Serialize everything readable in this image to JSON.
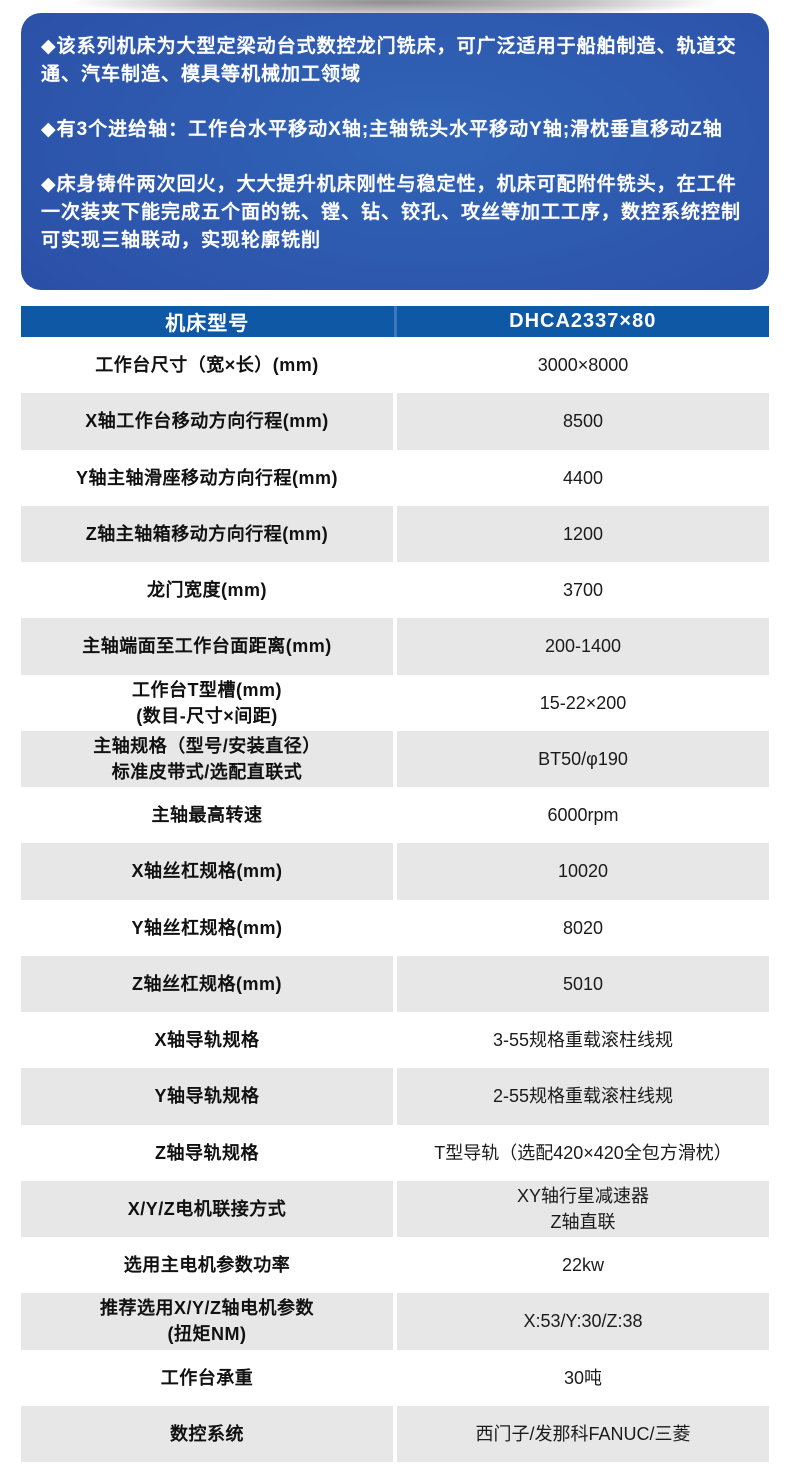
{
  "colors": {
    "panel_blue_light": "#3064b7",
    "panel_blue_dark": "#223e92",
    "table_header_blue": "#0f58a6",
    "table_header_divider": "#3a79b9",
    "row_gray": "#e7e7e7",
    "text_white": "#ffffff",
    "text_black": "#111111"
  },
  "intro": {
    "bullets": [
      "◆该系列机床为大型定梁动台式数控龙门铣床，可广泛适用于船舶制造、轨道交\n通、汽车制造、模具等机械加工领域",
      "◆有3个进给轴：工作台水平移动X轴;主轴铣头水平移动Y轴;滑枕垂直移动Z轴",
      "◆床身铸件两次回火，大大提升机床刚性与稳定性，机床可配附件铣头，在工件\n一次装夹下能完成五个面的铣、镗、钻、铰孔、攻丝等加工工序，数控系统控制\n可实现三轴联动，实现轮廓铣削"
    ]
  },
  "spec_table": {
    "header": {
      "label": "机床型号",
      "value": "DHCA2337×80"
    },
    "rows": [
      {
        "label": "工作台尺寸（宽×长）(mm)",
        "value": "3000×8000"
      },
      {
        "label": "X轴工作台移动方向行程(mm)",
        "value": "8500"
      },
      {
        "label": "Y轴主轴滑座移动方向行程(mm)",
        "value": "4400"
      },
      {
        "label": "Z轴主轴箱移动方向行程(mm)",
        "value": "1200"
      },
      {
        "label": "龙门宽度(mm)",
        "value": "3700"
      },
      {
        "label": "主轴端面至工作台面距离(mm)",
        "value": "200-1400"
      },
      {
        "label": "工作台T型槽(mm)\n(数目-尺寸×间距)",
        "value": "15-22×200"
      },
      {
        "label": "主轴规格（型号/安装直径）\n标准皮带式/选配直联式",
        "value": "BT50/φ190"
      },
      {
        "label": "主轴最高转速",
        "value": "6000rpm"
      },
      {
        "label": "X轴丝杠规格(mm)",
        "value": "10020"
      },
      {
        "label": "Y轴丝杠规格(mm)",
        "value": "8020"
      },
      {
        "label": "Z轴丝杠规格(mm)",
        "value": "5010"
      },
      {
        "label": "X轴导轨规格",
        "value": "3-55规格重载滚柱线规"
      },
      {
        "label": "Y轴导轨规格",
        "value": "2-55规格重载滚柱线规"
      },
      {
        "label": "Z轴导轨规格",
        "value": "T型导轨（选配420×420全包方滑枕）"
      },
      {
        "label": "X/Y/Z电机联接方式",
        "value": "XY轴行星减速器\nZ轴直联"
      },
      {
        "label": "选用主电机参数功率",
        "value": "22kw"
      },
      {
        "label": "推荐选用X/Y/Z轴电机参数\n(扭矩NM)",
        "value": "X:53/Y:30/Z:38"
      },
      {
        "label": "工作台承重",
        "value": "30吨"
      },
      {
        "label": "数控系统",
        "value": "西门子/发那科FANUC/三菱"
      }
    ]
  }
}
